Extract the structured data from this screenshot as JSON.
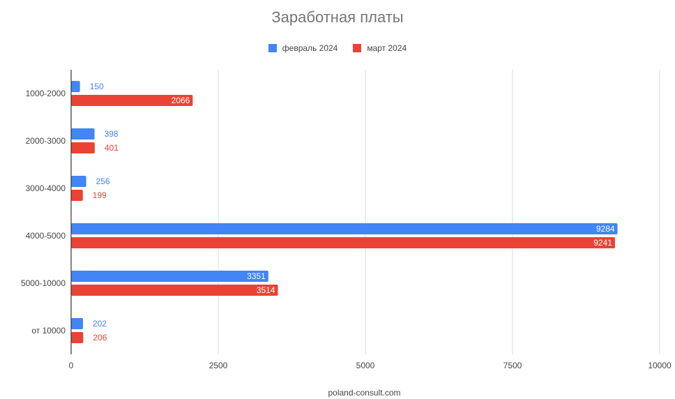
{
  "chart_data": {
    "type": "bar",
    "orientation": "horizontal",
    "title": "Заработная платы",
    "xlabel": "poland-consult.com",
    "ylabel": "",
    "categories": [
      "1000-2000",
      "2000-3000",
      "3000-4000",
      "4000-5000",
      "5000-10000",
      "от 10000"
    ],
    "series": [
      {
        "name": "февраль 2024",
        "color": "#4285f4",
        "values": [
          150,
          398,
          256,
          9284,
          3351,
          202
        ]
      },
      {
        "name": "март 2024",
        "color": "#ea4335",
        "values": [
          2066,
          401,
          199,
          9241,
          3514,
          206
        ]
      }
    ],
    "xlim": [
      0,
      10000
    ],
    "xticks": [
      0,
      2500,
      5000,
      7500,
      10000
    ],
    "grid": true,
    "legend_position": "top"
  }
}
